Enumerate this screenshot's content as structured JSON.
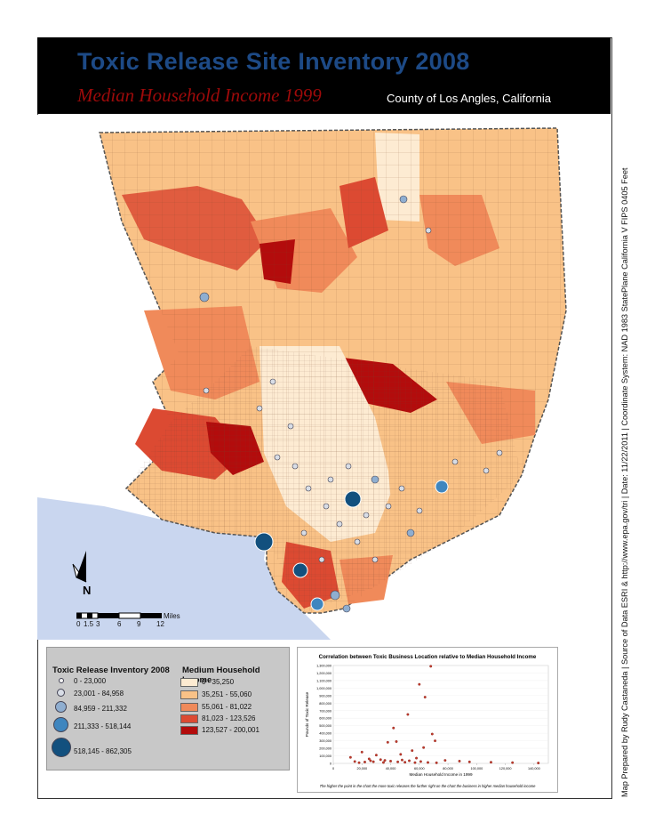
{
  "header": {
    "title": "Toxic Release Site Inventory 2008",
    "subtitle": "Median Household Income 1999",
    "county": "County of Los Angles, California"
  },
  "side_text": "Map Prepared by Rudy Castaneda | Source of Data ESRI & http://www.epa.gov/tri | Date: 11/22/2011 | Coordinate System: NAD 1983 StatePlane California V FIPS 0405 Feet",
  "north_label": "N",
  "scale": {
    "ticks": [
      "0",
      "1.5",
      "3",
      "6",
      "9",
      "12"
    ],
    "unit": "Miles"
  },
  "legend_tri": {
    "title": "Toxic Release Inventory 2008",
    "items": [
      {
        "label": "0 - 23,000",
        "color": "#f4f4f4"
      },
      {
        "label": "23,001 - 84,958",
        "color": "#d8dde6"
      },
      {
        "label": "84,959 - 211,332",
        "color": "#8faed0"
      },
      {
        "label": "211,333 - 518,144",
        "color": "#3f86bf"
      },
      {
        "label": "518,145 - 862,305",
        "color": "#12507e"
      }
    ]
  },
  "legend_income": {
    "title": "Medium Household Income",
    "items": [
      {
        "label": "0 - 35,250",
        "color": "#fdebd2"
      },
      {
        "label": "35,251 - 55,060",
        "color": "#f9c287"
      },
      {
        "label": "55,061 - 81,022",
        "color": "#f08a5a"
      },
      {
        "label": "81,023 - 123,526",
        "color": "#dc4a32"
      },
      {
        "label": "123,527 - 200,001",
        "color": "#b30c0c"
      }
    ]
  },
  "chart_data": {
    "type": "scatter",
    "title": "Correlation between Toxic Business Location relative to Median Household Income",
    "xlabel": "Median Household Income in 1999",
    "ylabel": "Pounds of Toxic Release",
    "caption": "The higher the point in the chart the more toxic releases the further right on the chart the business in higher median household income",
    "xlim": [
      0,
      150000
    ],
    "ylim": [
      0,
      1300000
    ],
    "x_ticks": [
      "0",
      "20,000",
      "40,000",
      "60,000",
      "80,000",
      "100,000",
      "120,000",
      "140,000"
    ],
    "y_ticks": [
      "0",
      "100,000",
      "200,000",
      "300,000",
      "400,000",
      "500,000",
      "600,000",
      "700,000",
      "800,000",
      "900,000",
      "1,000,000",
      "1,100,000",
      "1,200,000",
      "1,300,000"
    ],
    "points": [
      [
        68000,
        1290000
      ],
      [
        60000,
        1050000
      ],
      [
        64000,
        880000
      ],
      [
        52000,
        650000
      ],
      [
        42000,
        470000
      ],
      [
        69000,
        390000
      ],
      [
        44000,
        290000
      ],
      [
        38000,
        280000
      ],
      [
        71000,
        300000
      ],
      [
        20000,
        150000
      ],
      [
        55000,
        170000
      ],
      [
        63000,
        210000
      ],
      [
        30000,
        110000
      ],
      [
        47000,
        120000
      ],
      [
        12000,
        80000
      ],
      [
        25000,
        60000
      ],
      [
        33000,
        50000
      ],
      [
        58000,
        70000
      ],
      [
        78000,
        40000
      ],
      [
        88000,
        30000
      ],
      [
        95000,
        20000
      ],
      [
        110000,
        15000
      ],
      [
        125000,
        10000
      ],
      [
        143000,
        5000
      ],
      [
        15000,
        25000
      ],
      [
        22000,
        18000
      ],
      [
        28000,
        22000
      ],
      [
        35000,
        12000
      ],
      [
        40000,
        30000
      ],
      [
        45000,
        20000
      ],
      [
        50000,
        15000
      ],
      [
        53000,
        35000
      ],
      [
        57000,
        10000
      ],
      [
        61000,
        25000
      ],
      [
        66000,
        12000
      ],
      [
        72000,
        8000
      ],
      [
        18000,
        9000
      ],
      [
        26000,
        35000
      ],
      [
        36000,
        40000
      ],
      [
        48000,
        45000
      ]
    ]
  }
}
